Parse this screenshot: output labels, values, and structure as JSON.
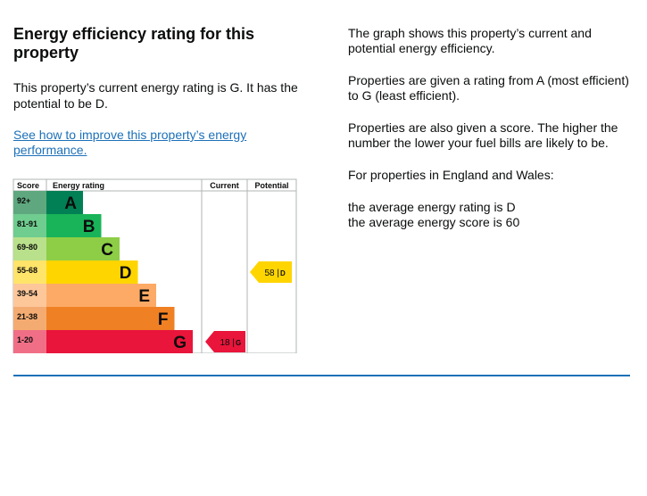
{
  "heading": "Energy efficiency rating for this property",
  "summary": "This property’s current energy rating is G. It has the potential to be D.",
  "improve_link": "See how to improve this property’s energy performance.",
  "explanation": {
    "p1": "The graph shows this property’s current and potential energy efficiency.",
    "p2": "Properties are given a rating from A (most efficient) to G (least efficient).",
    "p3": "Properties are also given a score. The higher the number the lower your fuel bills are likely to be.",
    "p4": "For properties in England and Wales:",
    "avg_rating": "the average energy rating is D",
    "avg_score": "the average energy score is 60"
  },
  "chart_data": {
    "type": "bar",
    "title": "Energy efficiency rating",
    "columns": {
      "score": "Score",
      "rating": "Energy rating",
      "current": "Current",
      "potential": "Potential"
    },
    "bands": [
      {
        "letter": "A",
        "range": "92+",
        "color": "#008054",
        "score_color": "#5fa87f"
      },
      {
        "letter": "B",
        "range": "81-91",
        "color": "#19b459",
        "score_color": "#6fcd8f"
      },
      {
        "letter": "C",
        "range": "69-80",
        "color": "#8dce46",
        "score_color": "#b9e08b"
      },
      {
        "letter": "D",
        "range": "55-68",
        "color": "#ffd500",
        "score_color": "#ffe46a"
      },
      {
        "letter": "E",
        "range": "39-54",
        "color": "#fcaa65",
        "score_color": "#fdc79a"
      },
      {
        "letter": "F",
        "range": "21-38",
        "color": "#ef8023",
        "score_color": "#f4ab71"
      },
      {
        "letter": "G",
        "range": "1-20",
        "color": "#e9153b",
        "score_color": "#f06f86"
      }
    ],
    "current": {
      "score": 18,
      "band": "G",
      "label": "18 |",
      "color": "#e9153b"
    },
    "potential": {
      "score": 58,
      "band": "D",
      "label": "58 |",
      "color": "#ffd500"
    }
  }
}
